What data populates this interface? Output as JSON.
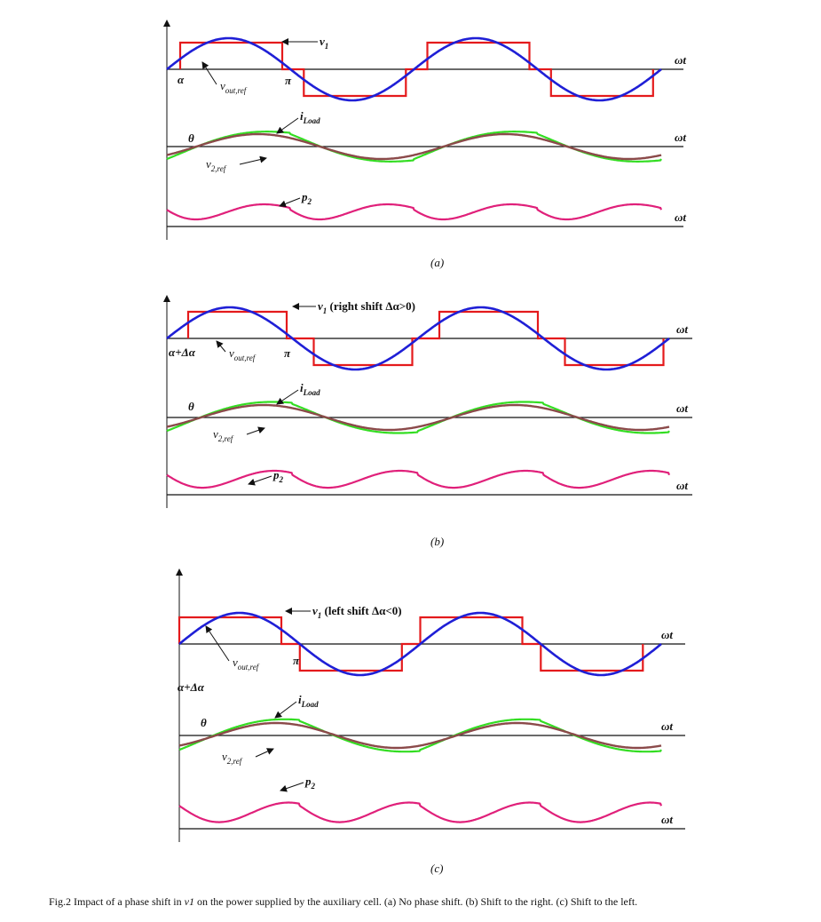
{
  "panels": [
    {
      "v1": {
        "base": "v",
        "sub": "1"
      },
      "vout": {
        "base": "v",
        "sub": "out,ref"
      },
      "alpha": "α",
      "pi": "π",
      "iload": {
        "base": "i",
        "sub": "Load"
      },
      "theta": "θ",
      "v2ref": {
        "base": "v",
        "sub": "2,ref"
      },
      "p2": {
        "base": "p",
        "sub": "2"
      },
      "axis_labels": [
        "ωt",
        "ωt",
        "ωt"
      ],
      "tag": "(a)"
    },
    {
      "v1": {
        "base": "v",
        "sub": "1",
        "suffix": " (right shift Δα>0)"
      },
      "vout": {
        "base": "v",
        "sub": "out,ref"
      },
      "alpha": "α+Δα",
      "pi": "π",
      "iload": {
        "base": "i",
        "sub": "Load"
      },
      "theta": "θ",
      "v2ref": {
        "base": "v",
        "sub": "2,ref"
      },
      "p2": {
        "base": "p",
        "sub": "2"
      },
      "axis_labels": [
        "ωt",
        "ωt",
        "ωt"
      ],
      "tag": "(b)"
    },
    {
      "v1": {
        "base": "v",
        "sub": "1",
        "suffix": " (left shift Δα<0)"
      },
      "vout": {
        "base": "v",
        "sub": "out,ref"
      },
      "alpha": "α+Δα",
      "pi": "π",
      "iload": {
        "base": "i",
        "sub": "Load"
      },
      "theta": "θ",
      "v2ref": {
        "base": "v",
        "sub": "2,ref"
      },
      "p2": {
        "base": "p",
        "sub": "2"
      },
      "axis_labels": [
        "ωt",
        "ωt",
        "ωt"
      ],
      "tag": "(c)"
    }
  ],
  "caption": {
    "prefix": "Fig.2 Impact of a phase shift in ",
    "italic": "v1",
    "suffix": " on the power supplied by the auxiliary cell. (a) No phase shift. (b) Shift to the right. (c) Shift to the left."
  }
}
